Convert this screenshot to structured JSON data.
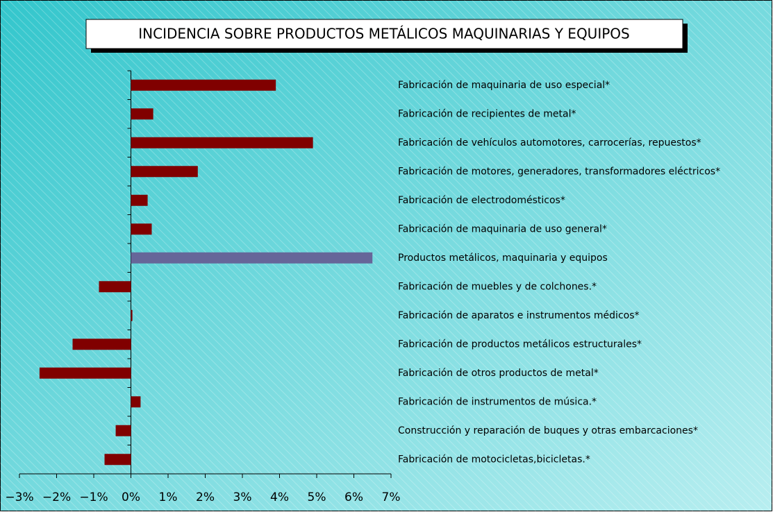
{
  "chart_data": {
    "type": "bar",
    "orientation": "horizontal",
    "title": "INCIDENCIA SOBRE PRODUCTOS METÁLICOS MAQUINARIAS Y EQUIPOS",
    "categories": [
      "Fabricación de maquinaria de uso especial*",
      "Fabricación de recipientes de metal*",
      "Fabricación de vehículos automotores, carrocerías, repuestos*",
      "Fabricación de motores, generadores, transformadores eléctricos*",
      "Fabricación de electrodomésticos*",
      "Fabricación de maquinaria de uso general*",
      "Productos metálicos, maquinaria y equipos",
      "Fabricación de muebles y de colchones.*",
      "Fabricación de aparatos e instrumentos médicos*",
      "Fabricación de productos metálicos estructurales*",
      "Fabricación de otros productos de metal*",
      "Fabricación de instrumentos de música.*",
      "Construcción y reparación de buques y otras embarcaciones*",
      "Fabricación de motocicletas,bicicletas.*"
    ],
    "values": [
      3.9,
      0.6,
      4.9,
      1.8,
      0.45,
      0.56,
      6.5,
      -0.86,
      0.04,
      -1.57,
      -2.46,
      0.26,
      -0.41,
      -0.71
    ],
    "colors": [
      "#800000",
      "#800000",
      "#800000",
      "#800000",
      "#800000",
      "#800000",
      "#666699",
      "#800000",
      "#800000",
      "#800000",
      "#800000",
      "#800000",
      "#800000",
      "#800000"
    ],
    "xlim": [
      -3,
      7
    ],
    "xticks": [
      {
        "value": -3,
        "label": "−3%"
      },
      {
        "value": -2,
        "label": "−2%"
      },
      {
        "value": -1,
        "label": "−1%"
      },
      {
        "value": 0,
        "label": "0%"
      },
      {
        "value": 1,
        "label": "1%"
      },
      {
        "value": 2,
        "label": "2%"
      },
      {
        "value": 3,
        "label": "3%"
      },
      {
        "value": 4,
        "label": "4%"
      },
      {
        "value": 5,
        "label": "5%"
      },
      {
        "value": 6,
        "label": "6%"
      },
      {
        "value": 7,
        "label": "7%"
      }
    ],
    "grid": false
  }
}
